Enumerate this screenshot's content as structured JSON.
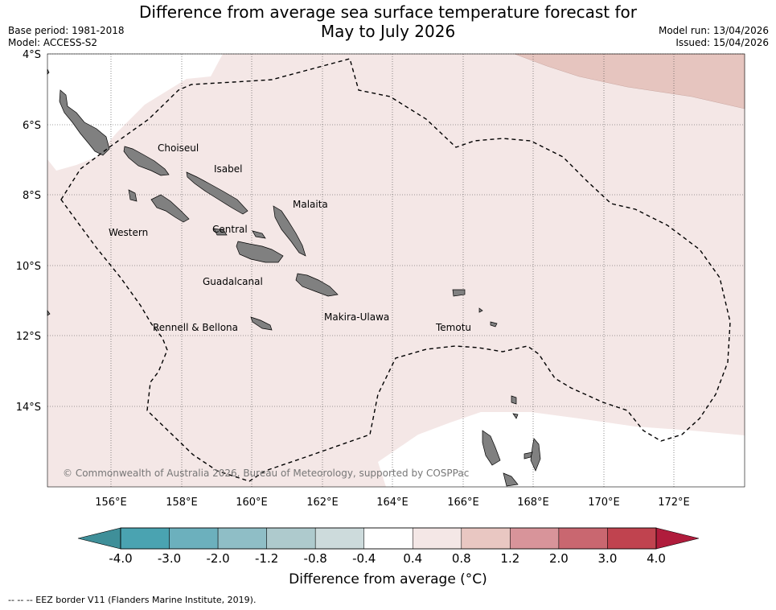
{
  "title_line1": "Difference from average sea surface temperature forecast for",
  "title_line2": "May to July 2026",
  "base_period": "Base period: 1981-2018",
  "model": "Model: ACCESS-S2",
  "model_run": "Model run: 13/04/2026",
  "issued": "Issued: 15/04/2026",
  "copyright": "© Commonwealth of Australia 2026, Bureau of Meteorology, supported by COSPPac",
  "lat_ticks": [
    "4°S",
    "6°S",
    "8°S",
    "10°S",
    "12°S",
    "14°S"
  ],
  "lon_ticks": [
    "156°E",
    "158°E",
    "160°E",
    "162°E",
    "164°E",
    "166°E",
    "168°E",
    "170°E",
    "172°E"
  ],
  "provinces": [
    "Choiseul",
    "Isabel",
    "Malaita",
    "Western",
    "Central",
    "Guadalcanal",
    "Makira-Ulawa",
    "Rennell & Bellona",
    "Temotu"
  ],
  "colorbar": {
    "labels": [
      "-4.0",
      "-3.0",
      "-2.0",
      "-1.2",
      "-0.8",
      "-0.4",
      "0.4",
      "0.8",
      "1.2",
      "2.0",
      "3.0",
      "4.0"
    ],
    "colors": [
      "#3f8f99",
      "#4aa3b1",
      "#6cb0bd",
      "#8fbec6",
      "#aecacd",
      "#cddbdc",
      "#ffffff",
      "#f4e7e6",
      "#e9c7c2",
      "#d8949a",
      "#c96770",
      "#c0434f",
      "#b01c3c"
    ],
    "title": "Difference from average (°C)"
  },
  "footnote": "--  --  -- EEZ border V11 (Flanders Marine Institute, 2019).",
  "colors": {
    "anomaly_04_08": "#f4e7e6",
    "anomaly_08_12": "#e6c5bf",
    "land": "#808080"
  }
}
